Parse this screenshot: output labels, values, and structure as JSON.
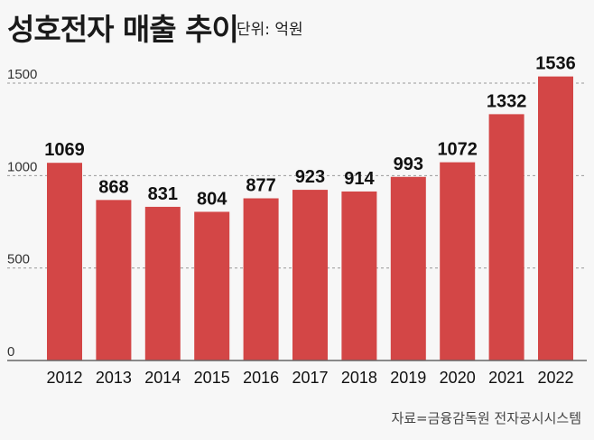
{
  "header": {
    "title": "성호전자 매출 추이",
    "unit": "단위: 억원"
  },
  "source": "자료=금융감독원 전자공시시스템",
  "colors": {
    "bar": "#d34646",
    "background": "#f7f7f7",
    "grid": "#999999"
  },
  "chart_data": {
    "type": "bar",
    "title": "성호전자 매출 추이",
    "ylabel": "단위: 억원",
    "categories": [
      "2012",
      "2013",
      "2014",
      "2015",
      "2016",
      "2017",
      "2018",
      "2019",
      "2020",
      "2021",
      "2022"
    ],
    "values": [
      1069,
      868,
      831,
      804,
      877,
      923,
      914,
      993,
      1072,
      1332,
      1536
    ],
    "yticks": [
      0,
      500,
      1000,
      1500
    ],
    "ylim": [
      0,
      1500
    ],
    "grid": "dashed horizontal",
    "data_labels": true
  }
}
